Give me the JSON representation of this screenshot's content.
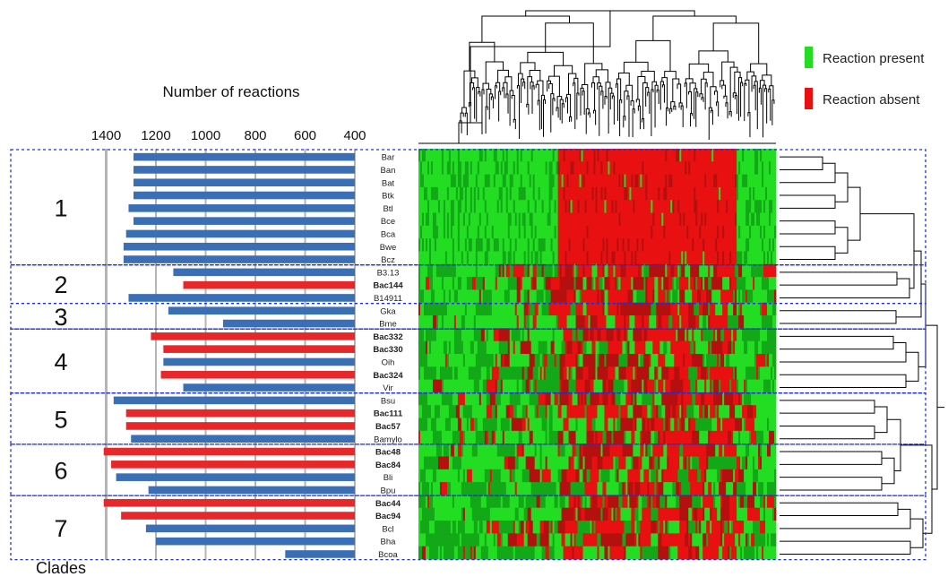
{
  "chart_data": {
    "type": "bar",
    "orientation": "horizontal",
    "title": "Number of reactions",
    "xlabel": "",
    "ylabel": "",
    "xlim": [
      1400,
      400
    ],
    "x_reversed": true,
    "ticks": [
      "1400",
      "1200",
      "1000",
      "800",
      "600",
      "400"
    ],
    "gridlines": true,
    "categories": [
      "Bar",
      "Ban",
      "Bat",
      "Btk",
      "Btl",
      "Bce",
      "Bca",
      "Bwe",
      "Bcz",
      "B3.13",
      "Bac144",
      "B14911",
      "Gka",
      "Bme",
      "Bac332",
      "Bac330",
      "Oih",
      "Bac324",
      "Vir",
      "Bsu",
      "Bac111",
      "Bac57",
      "Bamylo",
      "Bac48",
      "Bac84",
      "Bli",
      "Bpu",
      "Bac44",
      "Bac94",
      "Bcl",
      "Bha",
      "Bcoa"
    ],
    "bold_labels": [
      "Bac144",
      "Bac332",
      "Bac330",
      "Bac324",
      "Bac111",
      "Bac57",
      "Bac48",
      "Bac84",
      "Bac44",
      "Bac94"
    ],
    "values": [
      1290,
      1290,
      1290,
      1290,
      1310,
      1290,
      1320,
      1330,
      1330,
      1130,
      1090,
      1310,
      1150,
      930,
      1220,
      1170,
      1170,
      1180,
      1090,
      1370,
      1320,
      1320,
      1300,
      1410,
      1380,
      1360,
      1230,
      1410,
      1340,
      1240,
      1200,
      680
    ],
    "series_colors": {
      "reference": "#3a6fb5",
      "new": "#e8272a"
    },
    "clades": [
      {
        "label": "1",
        "start": 0,
        "end": 8
      },
      {
        "label": "2",
        "start": 9,
        "end": 11
      },
      {
        "label": "3",
        "start": 12,
        "end": 13
      },
      {
        "label": "4",
        "start": 14,
        "end": 18
      },
      {
        "label": "5",
        "start": 19,
        "end": 22
      },
      {
        "label": "6",
        "start": 23,
        "end": 26
      },
      {
        "label": "7",
        "start": 27,
        "end": 31
      }
    ],
    "clades_label": "Clades",
    "heatmap": {
      "legend": [
        {
          "label": "Reaction present",
          "color": "#22dd22"
        },
        {
          "label": "Reaction absent",
          "color": "#e81010"
        }
      ]
    }
  }
}
